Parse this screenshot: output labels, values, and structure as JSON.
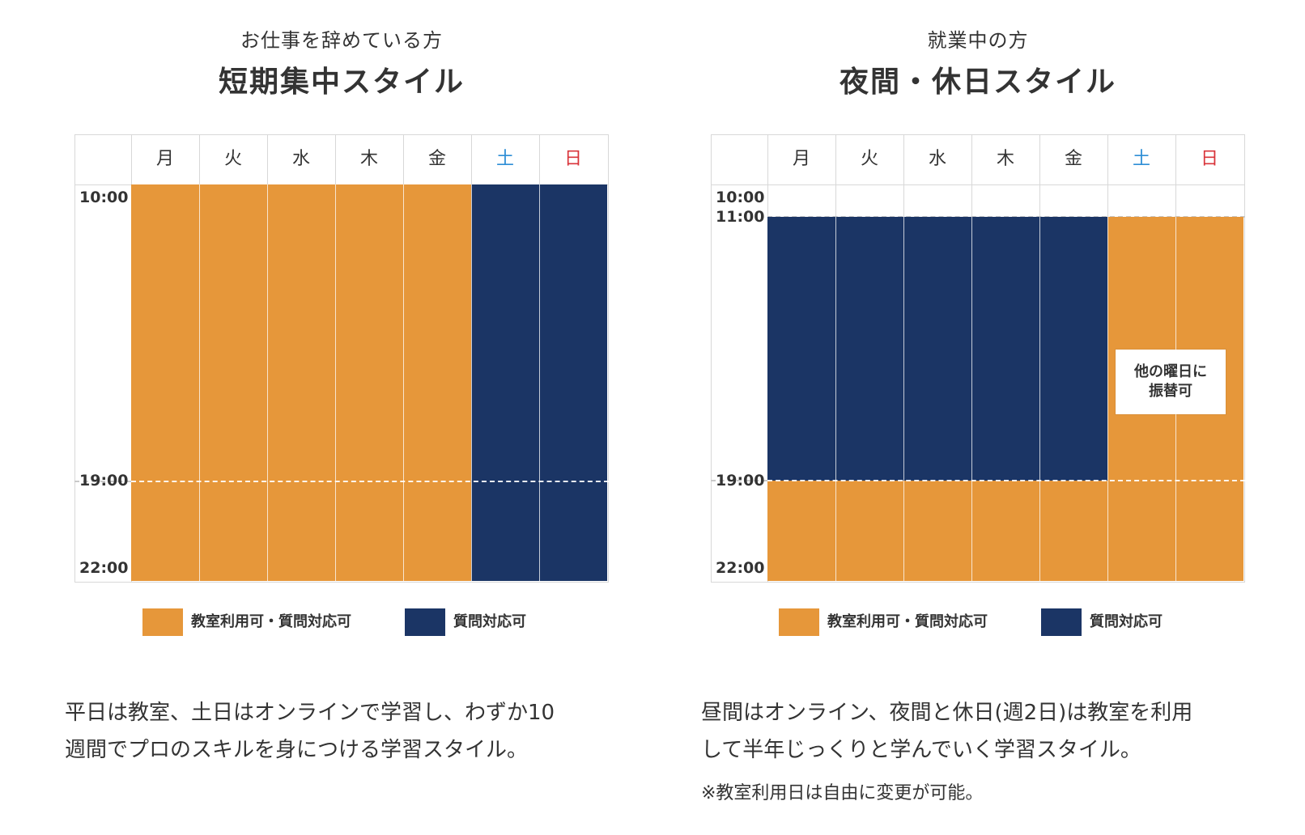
{
  "colors": {
    "orange": "#e6973a",
    "navy": "#1b3565",
    "saturday": "#2e8ed6",
    "sunday": "#d9343a"
  },
  "days": [
    "月",
    "火",
    "水",
    "木",
    "金",
    "土",
    "日"
  ],
  "legend": {
    "classroom": "教室利用可・質問対応可",
    "question": "質問対応可"
  },
  "left": {
    "subtitle": "お仕事を辞めている方",
    "title": "短期集中スタイル",
    "time_labels": [
      "10:00",
      "19:00",
      "22:00"
    ],
    "description": [
      "平日は教室、土日はオンラインで学習し、わずか10",
      "週間でプロのスキルを身につける学習スタイル。"
    ]
  },
  "right": {
    "subtitle": "就業中の方",
    "title": "夜間・休日スタイル",
    "time_labels": [
      "10:00",
      "11:00",
      "19:00",
      "22:00"
    ],
    "note": [
      "他の曜日に",
      "振替可"
    ],
    "description": [
      "昼間はオンライン、夜間と休日(週2日)は教室を利用",
      "して半年じっくりと学んでいく学習スタイル。"
    ],
    "footnote": "※教室利用日は自由に変更が可能。"
  }
}
